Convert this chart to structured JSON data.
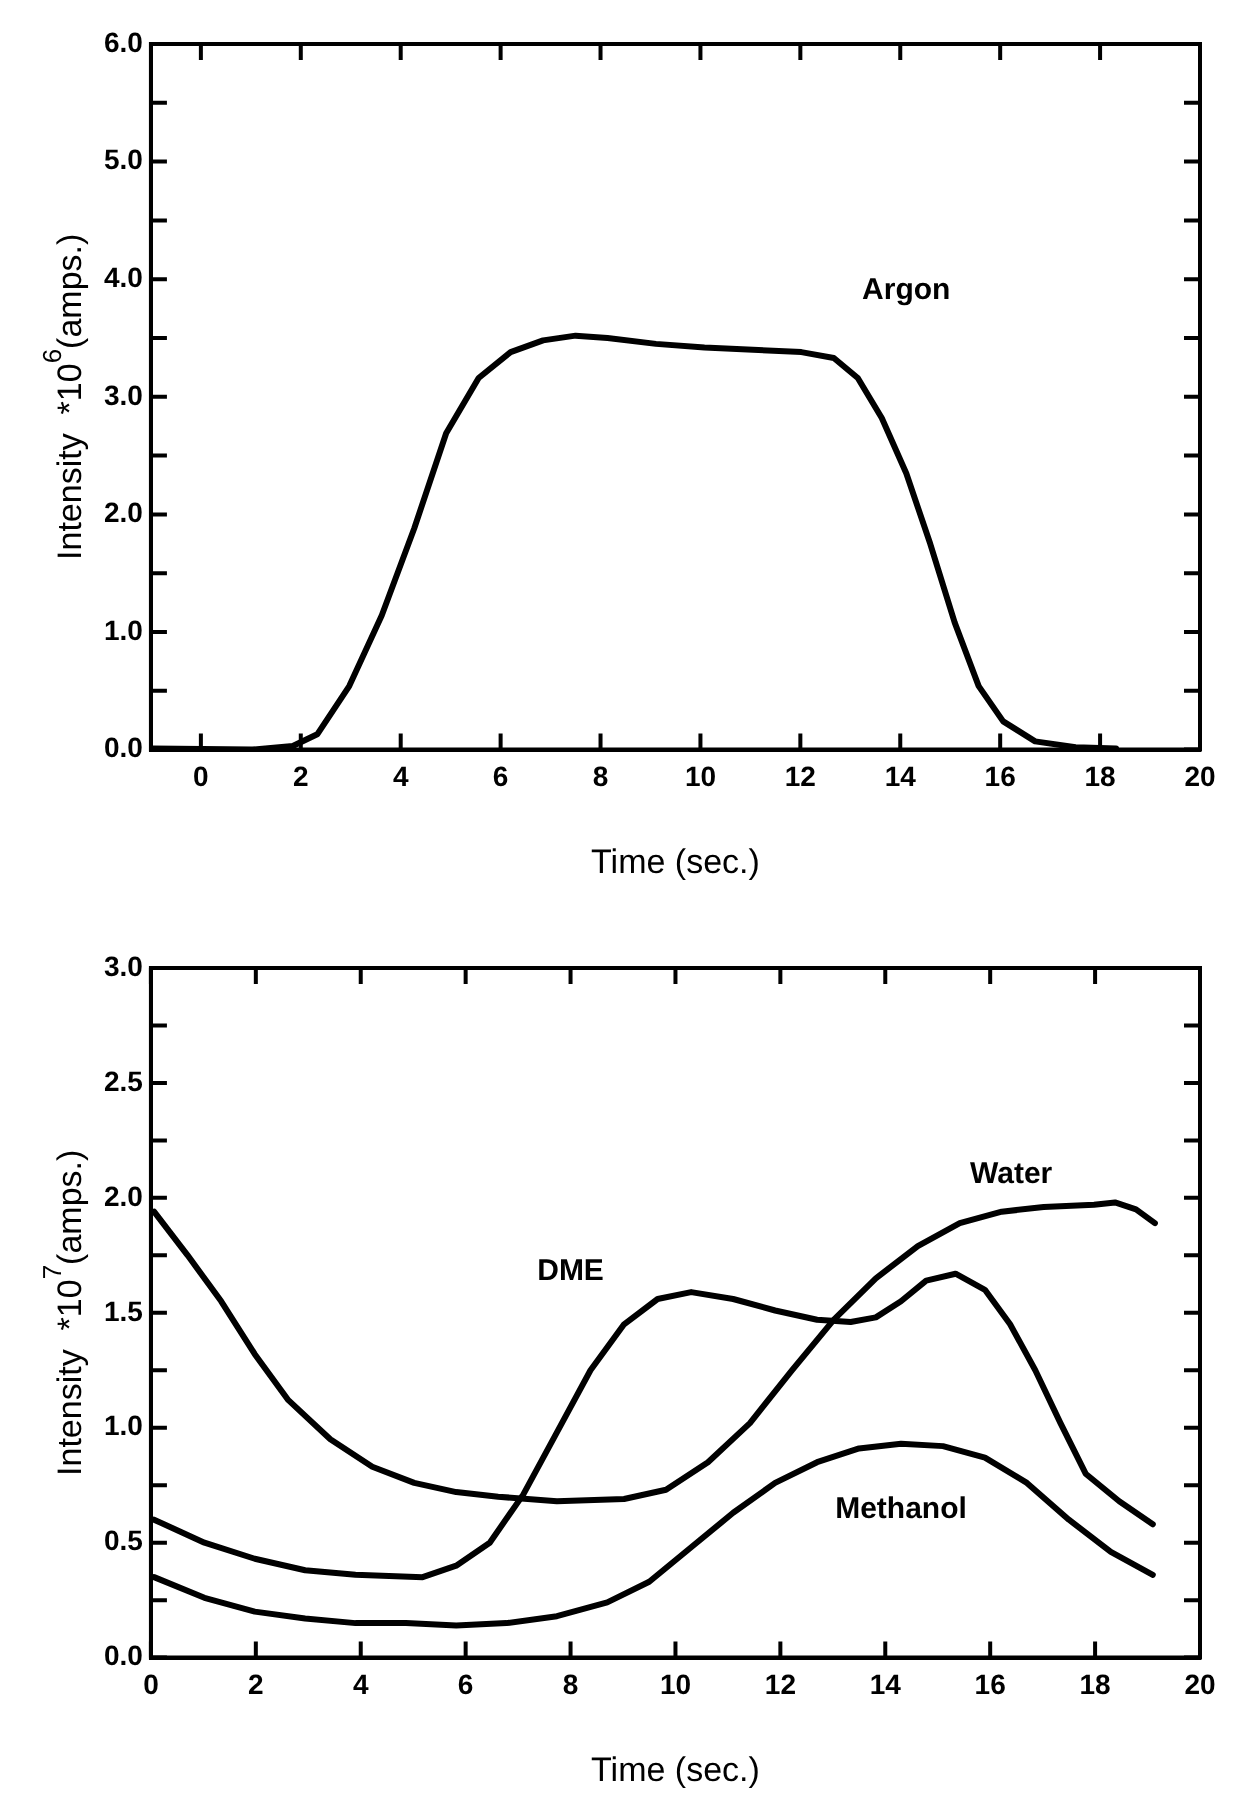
{
  "chart_data": [
    {
      "type": "line",
      "xlabel": "Time (sec.)",
      "ylabel": "Intensity  *10$^{6}$(amps.)",
      "xlim": [
        -1,
        20
      ],
      "ylim": [
        0,
        6
      ],
      "xticks": [
        0,
        2,
        4,
        6,
        8,
        10,
        12,
        14,
        16,
        18,
        20
      ],
      "yticks": [
        {
          "value": 0,
          "label": "0.0"
        },
        {
          "value": 0.5,
          "label": null
        },
        {
          "value": 1,
          "label": "1.0"
        },
        {
          "value": 1.5,
          "label": null
        },
        {
          "value": 2,
          "label": "2.0"
        },
        {
          "value": 2.5,
          "label": null
        },
        {
          "value": 3,
          "label": "3.0"
        },
        {
          "value": 3.5,
          "label": null
        },
        {
          "value": 4,
          "label": "4.0"
        },
        {
          "value": 4.5,
          "label": null
        },
        {
          "value": 5,
          "label": "5.0"
        },
        {
          "value": 5.5,
          "label": null
        },
        {
          "value": 6,
          "label": "6.0"
        }
      ],
      "grid": false,
      "legend": false,
      "marker": "none",
      "line_style": "solid",
      "series": [
        {
          "name": "Argon",
          "color": "#000000",
          "x": [
            -0.97,
            1.03,
            1.84,
            2.33,
            2.97,
            3.62,
            4.27,
            4.91,
            5.56,
            6.2,
            6.85,
            7.5,
            8.14,
            9.11,
            10.08,
            11.05,
            12.02,
            12.67,
            13.15,
            13.63,
            14.12,
            14.6,
            15.09,
            15.57,
            16.06,
            16.7,
            17.51,
            18.32
          ],
          "values": [
            0.01,
            0.0,
            0.03,
            0.13,
            0.54,
            1.14,
            1.88,
            2.69,
            3.16,
            3.38,
            3.48,
            3.52,
            3.5,
            3.45,
            3.42,
            3.4,
            3.38,
            3.33,
            3.16,
            2.82,
            2.35,
            1.75,
            1.08,
            0.54,
            0.24,
            0.07,
            0.02,
            0.01
          ]
        }
      ]
    },
    {
      "type": "line",
      "xlabel": "Time (sec.)",
      "ylabel": "Intensity  *10$^{7}$(amps.)",
      "xlim": [
        0,
        20
      ],
      "ylim": [
        0,
        3
      ],
      "xticks": [
        0,
        2,
        4,
        6,
        8,
        10,
        12,
        14,
        16,
        18,
        20
      ],
      "yticks": [
        {
          "value": 0,
          "label": "0.0"
        },
        {
          "value": 0.25,
          "label": null
        },
        {
          "value": 0.5,
          "label": "0.5"
        },
        {
          "value": 0.75,
          "label": null
        },
        {
          "value": 1,
          "label": "1.0"
        },
        {
          "value": 1.25,
          "label": null
        },
        {
          "value": 1.5,
          "label": "1.5"
        },
        {
          "value": 1.75,
          "label": null
        },
        {
          "value": 2,
          "label": "2.0"
        },
        {
          "value": 2.25,
          "label": null
        },
        {
          "value": 2.5,
          "label": "2.5"
        },
        {
          "value": 2.75,
          "label": null
        },
        {
          "value": 3,
          "label": "3.0"
        }
      ],
      "grid": false,
      "legend": false,
      "marker": "none",
      "line_style": "solid",
      "series": [
        {
          "name": "Water",
          "color": "#000000",
          "x": [
            0.06,
            0.7,
            1.34,
            1.98,
            2.62,
            3.42,
            4.22,
            5.02,
            5.82,
            6.62,
            7.74,
            9.02,
            9.82,
            10.62,
            11.42,
            12.22,
            13.02,
            13.82,
            14.62,
            15.42,
            16.22,
            17.02,
            17.98,
            18.38,
            18.78,
            19.14
          ],
          "values": [
            1.94,
            1.75,
            1.55,
            1.32,
            1.12,
            0.95,
            0.83,
            0.76,
            0.72,
            0.7,
            0.68,
            0.69,
            0.73,
            0.85,
            1.02,
            1.25,
            1.47,
            1.65,
            1.79,
            1.89,
            1.94,
            1.96,
            1.97,
            1.98,
            1.95,
            1.89
          ]
        },
        {
          "name": "DME",
          "color": "#000000",
          "x": [
            0.06,
            1.02,
            1.98,
            2.94,
            3.9,
            5.18,
            5.82,
            6.46,
            7.1,
            7.74,
            8.38,
            9.02,
            9.66,
            10.3,
            11.1,
            11.9,
            12.7,
            13.34,
            13.82,
            14.3,
            14.78,
            15.34,
            15.9,
            16.38,
            16.86,
            17.34,
            17.82,
            18.46,
            19.1
          ],
          "values": [
            0.6,
            0.5,
            0.43,
            0.38,
            0.36,
            0.35,
            0.4,
            0.5,
            0.71,
            0.98,
            1.25,
            1.45,
            1.56,
            1.59,
            1.56,
            1.51,
            1.47,
            1.46,
            1.48,
            1.55,
            1.64,
            1.67,
            1.6,
            1.45,
            1.25,
            1.02,
            0.8,
            0.68,
            0.58
          ]
        },
        {
          "name": "Methanol",
          "color": "#000000",
          "x": [
            0.06,
            1.02,
            1.98,
            2.94,
            3.9,
            4.86,
            5.82,
            6.78,
            7.74,
            8.7,
            9.5,
            10.3,
            11.1,
            11.9,
            12.7,
            13.5,
            14.3,
            15.1,
            15.9,
            16.7,
            17.5,
            18.3,
            19.1
          ],
          "values": [
            0.35,
            0.26,
            0.2,
            0.17,
            0.15,
            0.15,
            0.14,
            0.15,
            0.18,
            0.24,
            0.33,
            0.48,
            0.63,
            0.76,
            0.85,
            0.91,
            0.93,
            0.92,
            0.87,
            0.76,
            0.6,
            0.46,
            0.36
          ]
        }
      ]
    }
  ]
}
